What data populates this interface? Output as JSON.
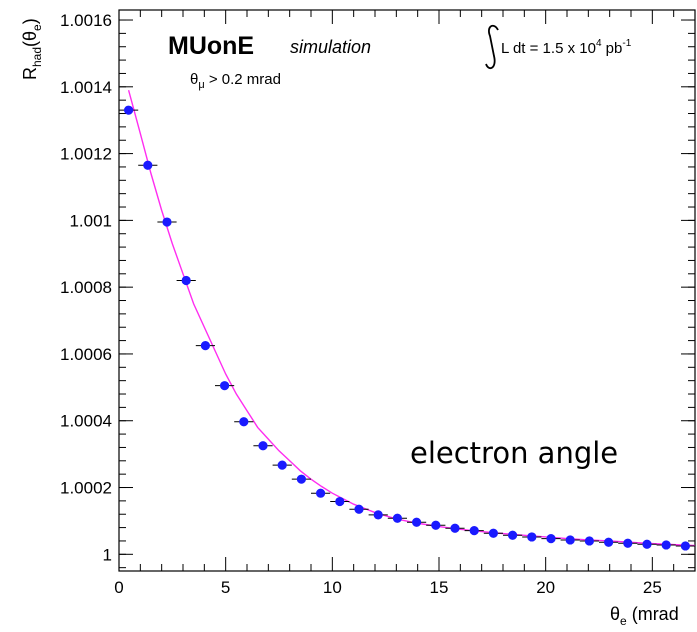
{
  "chart_data": {
    "type": "scatter",
    "title": "MUonE",
    "subtitle": "simulation",
    "cut_label": "θ_μ > 0.2 mrad",
    "lumi_label": "L dt = 1.5 x 10^4 pb^-1",
    "annotation": "electron angle",
    "xlabel": "θ_e (mrad",
    "ylabel": "R_had(θ_e)",
    "xlim": [
      0,
      27
    ],
    "ylim": [
      0.99995,
      1.00163
    ],
    "x_ticks": [
      0,
      5,
      10,
      15,
      20,
      25
    ],
    "y_ticks": [
      1,
      1.0002,
      1.0004,
      1.0006,
      1.0008,
      1.001,
      1.0012,
      1.0014,
      1.0016
    ],
    "y_tick_labels": [
      "1",
      "1.0002",
      "1.0004",
      "1.0006",
      "1.0008",
      "1.001",
      "1.0012",
      "1.0014",
      "1.0016"
    ],
    "grid": false,
    "series": [
      {
        "color": "#1a1aff",
        "bin_halfwidth": 0.45,
        "x": [
          0.45,
          1.35,
          2.25,
          3.15,
          4.05,
          4.95,
          5.85,
          6.75,
          7.65,
          8.55,
          9.45,
          10.35,
          11.25,
          12.15,
          13.05,
          13.95,
          14.85,
          15.75,
          16.65,
          17.55,
          18.45,
          19.35,
          20.25,
          21.15,
          22.05,
          22.95,
          23.85,
          24.75,
          25.65,
          26.55
        ],
        "y": [
          1.00133,
          1.001165,
          1.000995,
          1.00082,
          1.000625,
          1.000505,
          1.000397,
          1.000325,
          1.000267,
          1.000225,
          1.000183,
          1.000158,
          1.000135,
          1.000118,
          1.000108,
          1.000096,
          1.000087,
          1.000078,
          1.000071,
          1.000063,
          1.000057,
          1.000052,
          1.000047,
          1.000043,
          1.00004,
          1.000036,
          1.000033,
          1.00003,
          1.000028,
          1.000025
        ]
      }
    ],
    "fit": {
      "color": "#ff2df0",
      "x": [
        0.45,
        1,
        1.5,
        2,
        2.5,
        3,
        3.5,
        4,
        4.5,
        5,
        5.5,
        6,
        6.5,
        7,
        7.5,
        8,
        8.5,
        9,
        9.5,
        10,
        11,
        12,
        13,
        14,
        15,
        16,
        17,
        18,
        19,
        20,
        21,
        22,
        23,
        24,
        25,
        26,
        27
      ],
      "y": [
        1.00139,
        1.00126,
        1.00114,
        1.00103,
        1.00093,
        1.00084,
        1.00075,
        1.00068,
        1.00061,
        1.00054,
        1.00048,
        1.00043,
        1.00038,
        1.000345,
        1.00031,
        1.00028,
        1.00025,
        1.000225,
        1.000203,
        1.000183,
        1.00015,
        1.000125,
        1.000106,
        1.000093,
        1.000083,
        1.000075,
        1.000068,
        1.000062,
        1.000057,
        1.000052,
        1.000047,
        1.000043,
        1.00004,
        1.000036,
        1.000032,
        1.000029,
        1.000026
      ]
    }
  }
}
